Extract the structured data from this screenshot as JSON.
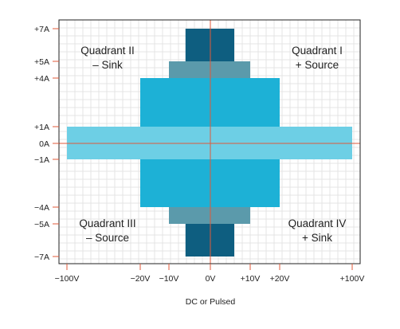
{
  "chart_data": {
    "type": "diagram",
    "title": "",
    "xlabel": "DC or Pulsed",
    "ylabel": "",
    "xlim": [
      -100,
      100
    ],
    "ylim": [
      -7,
      7
    ],
    "x_ticks": [
      {
        "value": -100,
        "label": "−100V"
      },
      {
        "value": -20,
        "label": "−20V"
      },
      {
        "value": -10,
        "label": "−10V"
      },
      {
        "value": 0,
        "label": "0V"
      },
      {
        "value": 10,
        "label": "+10V"
      },
      {
        "value": 20,
        "label": "+20V"
      },
      {
        "value": 100,
        "label": "+100V"
      }
    ],
    "y_ticks": [
      {
        "value": 7,
        "label": "+7A"
      },
      {
        "value": 5,
        "label": "+5A"
      },
      {
        "value": 4,
        "label": "+4A"
      },
      {
        "value": 1,
        "label": "+1A"
      },
      {
        "value": 0,
        "label": "0A"
      },
      {
        "value": -1,
        "label": "−1A"
      },
      {
        "value": -4,
        "label": "−4A"
      },
      {
        "value": -5,
        "label": "−5A"
      },
      {
        "value": -7,
        "label": "−7A"
      }
    ],
    "regions": [
      {
        "v": 6,
        "i": 7,
        "color": "#0e5e80"
      },
      {
        "v": 10,
        "i": 5,
        "color": "#5b9aab"
      },
      {
        "v": 20,
        "i": 4,
        "color": "#1db1d6"
      },
      {
        "v": 100,
        "i": 1,
        "color": "#6dcfe5"
      }
    ],
    "quadrants": [
      {
        "id": "q1",
        "line1": "Quadrant I",
        "line2": "+ Source",
        "pos": "top-right"
      },
      {
        "id": "q2",
        "line1": "Quadrant II",
        "line2": "– Sink",
        "pos": "top-left"
      },
      {
        "id": "q3",
        "line1": "Quadrant III",
        "line2": "– Source",
        "pos": "bottom-left"
      },
      {
        "id": "q4",
        "line1": "Quadrant IV",
        "line2": "+ Sink",
        "pos": "bottom-right"
      }
    ],
    "grid": true,
    "colors": {
      "axis": "#e05a3a",
      "grid": "#e4e4e4",
      "frame": "#222222"
    }
  }
}
